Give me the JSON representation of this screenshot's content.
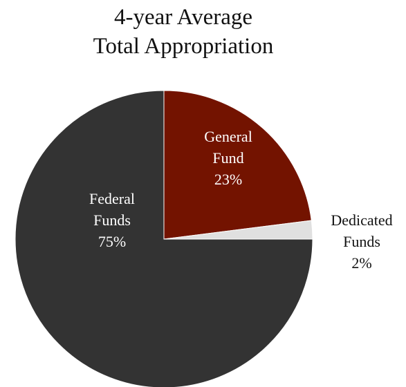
{
  "chart_data": {
    "type": "pie",
    "title": [
      "4-year Average",
      "Total Appropriation"
    ],
    "slices": [
      {
        "label": [
          "General",
          "Fund"
        ],
        "percent_label": "23%",
        "value": 23,
        "color": "#731300",
        "label_color": "#ffffff",
        "label_placement": "inside"
      },
      {
        "label": [
          "Dedicated",
          "Funds"
        ],
        "percent_label": "2%",
        "value": 2,
        "color": "#e0e0e0",
        "label_color": "#111111",
        "label_placement": "outside"
      },
      {
        "label": [
          "Federal",
          "Funds"
        ],
        "percent_label": "75%",
        "value": 75,
        "color": "#333333",
        "label_color": "#ffffff",
        "label_placement": "inside"
      }
    ],
    "start_angle": "12 o'clock",
    "direction": "clockwise",
    "legend": "none"
  }
}
